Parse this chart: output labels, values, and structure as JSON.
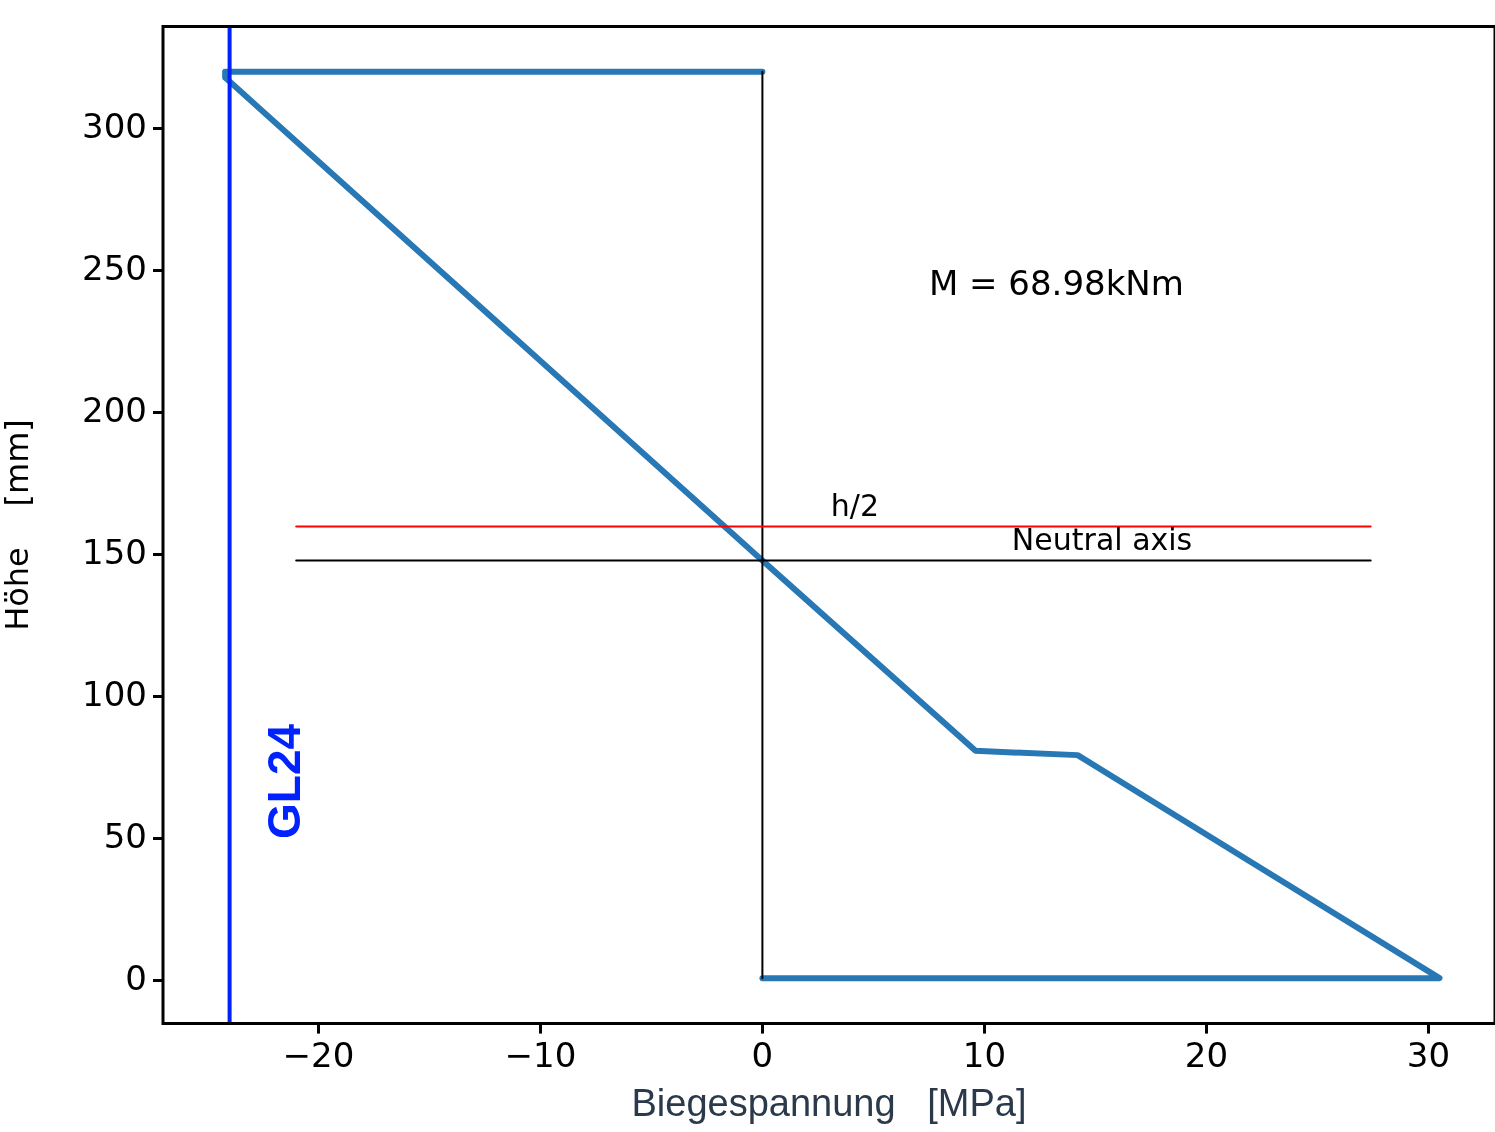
{
  "chart_data": {
    "type": "line",
    "xlabel": "Biegespannung   [MPa]",
    "ylabel": "Höhe    [mm]",
    "xlim": [
      -27,
      33
    ],
    "ylim": [
      -15,
      336
    ],
    "xticks": [
      -20,
      -10,
      0,
      10,
      20,
      30
    ],
    "yticks": [
      0,
      50,
      100,
      150,
      200,
      250,
      300
    ],
    "grid": false,
    "legend": false,
    "marker": "none",
    "line_style": "solid",
    "series": [
      {
        "color": "#2878b5",
        "x": [
          0,
          -24.2,
          -24.2,
          0,
          9.6,
          14.2,
          30.5,
          0
        ],
        "values": [
          320,
          320,
          318,
          148,
          81,
          79.5,
          1,
          1
        ]
      },
      {
        "color": "#000000",
        "x": [
          0,
          0
        ],
        "values": [
          1,
          320
        ]
      },
      {
        "name": "h/2",
        "color": "#ff0000",
        "x": [
          -21,
          27.4
        ],
        "values": [
          160,
          160
        ]
      },
      {
        "name": "Neutral axis",
        "color": "#000000",
        "x": [
          -21,
          27.4
        ],
        "values": [
          148,
          148
        ]
      }
    ],
    "ref_lines": [
      {
        "axis": "x",
        "value": -24,
        "label": "GL24",
        "color": "#0022ff"
      }
    ],
    "annotations": [
      "M = 68.98kNm"
    ]
  }
}
